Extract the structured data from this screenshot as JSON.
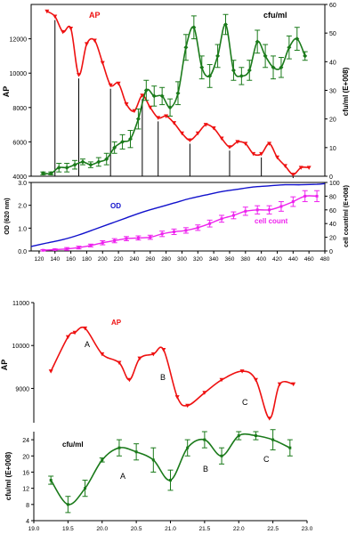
{
  "chart_data": [
    {
      "type": "line",
      "panel": "top",
      "title": "",
      "xlabel": "",
      "ylabel_left": "AP",
      "ylabel_right": "cfu/ml (E+008)",
      "xlim": [
        110,
        480
      ],
      "ylim_left": [
        4000,
        14000
      ],
      "ylim_right": [
        0,
        60
      ],
      "x_ticks": [
        120,
        140,
        160,
        180,
        200,
        220,
        240,
        260,
        280,
        300,
        320,
        340,
        360,
        380,
        400,
        420,
        440,
        460,
        480
      ],
      "y_left_ticks": [
        4000,
        6000,
        8000,
        10000,
        12000
      ],
      "y_right_ticks": [
        0,
        10,
        20,
        30,
        40,
        50,
        60
      ],
      "grid": false,
      "annotations": [
        "AP",
        "cfu/ml"
      ],
      "series": [
        {
          "name": "AP",
          "axis": "left",
          "color": "#ee1111",
          "x": [
            130,
            140,
            150,
            160,
            170,
            180,
            190,
            200,
            210,
            220,
            230,
            240,
            250,
            260,
            270,
            280,
            290,
            300,
            310,
            320,
            330,
            340,
            350,
            360,
            370,
            380,
            390,
            400,
            410,
            420,
            430,
            440,
            450,
            460
          ],
          "y": [
            13600,
            13300,
            12400,
            12600,
            9900,
            11700,
            11900,
            10600,
            9300,
            9400,
            8200,
            7800,
            8700,
            8000,
            7400,
            7500,
            7100,
            6500,
            6100,
            6500,
            7000,
            6800,
            6200,
            5700,
            6000,
            5900,
            5300,
            5300,
            5900,
            5100,
            4600,
            4100,
            4500,
            4500
          ]
        },
        {
          "name": "cfu/ml",
          "axis": "right",
          "color": "#1a7a1a",
          "x": [
            125,
            135,
            145,
            155,
            165,
            175,
            185,
            195,
            205,
            215,
            225,
            235,
            245,
            255,
            265,
            275,
            285,
            295,
            305,
            315,
            325,
            335,
            345,
            355,
            365,
            375,
            385,
            395,
            405,
            415,
            425,
            435,
            445,
            455
          ],
          "y": [
            1,
            1,
            3,
            3,
            4,
            5,
            4,
            5,
            6,
            10,
            12,
            13,
            20,
            30,
            28,
            28,
            24,
            29,
            45,
            52,
            38,
            35,
            42,
            53,
            37,
            35,
            37,
            47,
            42,
            38,
            38,
            45,
            48,
            42
          ],
          "err": [
            0.5,
            0.5,
            1.5,
            1.5,
            1.5,
            1,
            1,
            1.5,
            2,
            2,
            2.5,
            3,
            3.5,
            3.5,
            3.5,
            3,
            3,
            4,
            4.5,
            4,
            4,
            4,
            4,
            3.5,
            3.5,
            3,
            3.5,
            4,
            4,
            4,
            3.5,
            4,
            4,
            1.5
          ]
        }
      ]
    },
    {
      "type": "line",
      "panel": "middle",
      "xlabel": "",
      "ylabel_left": "OD (620 nm)",
      "ylabel_right": "cell count/ml (E+008)",
      "xlim": [
        110,
        480
      ],
      "ylim_left": [
        0,
        3
      ],
      "ylim_right": [
        0,
        100
      ],
      "x_ticks": [
        120,
        140,
        160,
        180,
        200,
        220,
        240,
        260,
        280,
        300,
        320,
        340,
        360,
        380,
        400,
        420,
        440,
        460,
        480
      ],
      "y_left_ticks": [
        "0.0",
        "1.0",
        "2.0",
        "3.0"
      ],
      "y_right_ticks": [
        0,
        20,
        40,
        60,
        80,
        100
      ],
      "annotations": [
        "OD",
        "cell count"
      ],
      "series": [
        {
          "name": "OD",
          "axis": "left",
          "color": "#1111cc",
          "x": [
            110,
            130,
            150,
            170,
            190,
            210,
            230,
            250,
            270,
            290,
            310,
            330,
            350,
            370,
            390,
            410,
            430,
            450,
            470,
            480
          ],
          "y": [
            0.2,
            0.35,
            0.5,
            0.7,
            0.95,
            1.2,
            1.45,
            1.7,
            1.9,
            2.1,
            2.3,
            2.45,
            2.6,
            2.7,
            2.8,
            2.85,
            2.9,
            2.9,
            2.92,
            2.95
          ]
        },
        {
          "name": "cell count",
          "axis": "right",
          "color": "#ee22ee",
          "x": [
            125,
            140,
            155,
            170,
            185,
            200,
            215,
            230,
            245,
            260,
            275,
            290,
            305,
            320,
            335,
            350,
            365,
            380,
            395,
            410,
            425,
            440,
            455,
            470
          ],
          "y": [
            1,
            2,
            3,
            5,
            8,
            12,
            15,
            18,
            19,
            20,
            25,
            28,
            30,
            34,
            40,
            47,
            52,
            58,
            60,
            60,
            65,
            72,
            80,
            80
          ],
          "err": [
            1,
            1,
            2,
            2,
            2,
            3,
            3,
            3,
            3,
            3,
            4,
            4,
            4,
            4,
            5,
            5,
            5,
            6,
            6,
            6,
            7,
            7,
            8,
            8
          ]
        }
      ]
    },
    {
      "type": "line",
      "panel": "bottom-ap",
      "xlabel": "",
      "ylabel": "AP",
      "xlim": [
        19.0,
        23.0
      ],
      "ylim": [
        8200,
        11000
      ],
      "y_ticks": [
        9000,
        10000,
        11000
      ],
      "annotations": [
        "AP",
        "A",
        "B",
        "C"
      ],
      "series": [
        {
          "name": "AP",
          "color": "#ee1111",
          "x": [
            19.25,
            19.5,
            19.6,
            19.75,
            20.0,
            20.25,
            20.4,
            20.55,
            20.75,
            20.9,
            21.1,
            21.25,
            21.5,
            21.75,
            22.05,
            22.25,
            22.45,
            22.6,
            22.8
          ],
          "y": [
            9400,
            10200,
            10300,
            10400,
            9800,
            9600,
            9200,
            9700,
            9800,
            9900,
            8800,
            8600,
            8900,
            9200,
            9400,
            9200,
            8300,
            9100,
            9100
          ]
        }
      ]
    },
    {
      "type": "line",
      "panel": "bottom-cfu",
      "xlabel": "",
      "ylabel": "cfu/ml (E+008)",
      "xlim": [
        19.0,
        23.0
      ],
      "ylim": [
        4,
        26
      ],
      "x_ticks": [
        "19.0",
        "19.5",
        "20.0",
        "20.5",
        "21.0",
        "21.5",
        "22.0",
        "22.5",
        "23.0"
      ],
      "y_ticks": [
        4,
        8,
        12,
        16,
        20,
        24
      ],
      "annotations": [
        "cfu/ml",
        "A",
        "B",
        "C"
      ],
      "series": [
        {
          "name": "cfu/ml",
          "color": "#1a7a1a",
          "x": [
            19.25,
            19.5,
            19.75,
            20.0,
            20.25,
            20.5,
            20.75,
            21.0,
            21.25,
            21.5,
            21.75,
            22.0,
            22.25,
            22.5,
            22.75
          ],
          "y": [
            14,
            8,
            12,
            19,
            22,
            21,
            19,
            14,
            22,
            24,
            20,
            25,
            25,
            24,
            22
          ],
          "err": [
            1,
            2,
            2,
            0.5,
            2,
            2,
            3,
            2.5,
            2,
            2,
            2,
            1,
            1,
            2.5,
            2
          ]
        }
      ]
    }
  ],
  "labels": {
    "top_ap": "AP",
    "top_cfu": "cfu/ml",
    "top_ylabel_left": "AP",
    "top_ylabel_right": "cfu/ml (E+008)",
    "mid_od": "OD",
    "mid_cell": "cell count",
    "mid_ylabel_left": "OD (620 nm)",
    "mid_ylabel_right": "cell count/ml (E+008)",
    "b1_ap": "AP",
    "b1_ylabel": "AP",
    "b1_A": "A",
    "b1_B": "B",
    "b1_C": "C",
    "b2_cfu": "cfu/ml",
    "b2_ylabel": "cfu/ml (E+008)",
    "b2_A": "A",
    "b2_B": "B",
    "b2_C": "C"
  }
}
